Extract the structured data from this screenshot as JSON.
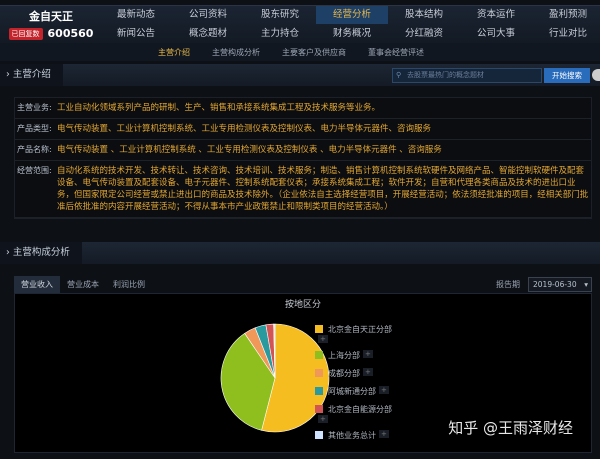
{
  "header": {
    "stock_name": "金自天正",
    "badge": "已回复数",
    "stock_code": "600560",
    "nav": [
      "最新动态",
      "公司资料",
      "股东研究",
      "经营分析",
      "股本结构",
      "资本运作",
      "盈利预测",
      "新闻公告",
      "概念题材",
      "主力持仓",
      "财务概况",
      "分红融资",
      "公司大事",
      "行业对比"
    ],
    "active_nav": "经营分析"
  },
  "subnav": {
    "items": [
      "主营介绍",
      "主营构成分析",
      "主要客户及供应商",
      "董事会经营评述"
    ],
    "active": "主营介绍"
  },
  "section1": {
    "title": "主营介绍",
    "search_placeholder": "去股票最热门的概念题材",
    "search_button": "开始搜索"
  },
  "info": [
    {
      "label": "主营业务:",
      "value": "工业自动化领域系列产品的研制、生产、销售和承接系统集成工程及技术服务等业务。"
    },
    {
      "label": "产品类型:",
      "value": "电气传动装置、工业计算机控制系统、工业专用检测仪表及控制仪表、电力半导体元器件、咨询服务"
    },
    {
      "label": "产品名称:",
      "value": "电气传动装置 、工业计算机控制系统 、工业专用检测仪表及控制仪表 、电力半导体元器件 、咨询服务"
    },
    {
      "label": "经营范围:",
      "value": "自动化系统的技术开发、技术转让、技术咨询、技术培训、技术服务；制造、销售计算机控制系统软硬件及网络产品、智能控制软硬件及配套设备、电气传动装置及配套设备、电子元器件、控制系统配套仪表；承接系统集成工程；软件开发；自营和代理各类商品及技术的进出口业务，但国家限定公司经营或禁止进出口的商品及技术除外。（企业依法自主选择经营项目，开展经营活动；依法须经批准的项目，经相关部门批准后依批准的内容开展经营活动；不得从事本市产业政策禁止和限制类项目的经营活动。）"
    }
  ],
  "section2": {
    "title": "主营构成分析",
    "tabs": [
      "营业收入",
      "营业成本",
      "利润比例"
    ],
    "active_tab": "营业收入",
    "period_label": "报告期",
    "period_value": "2019-06-30"
  },
  "chart_data": {
    "type": "pie",
    "title": "按地区分",
    "slices": [
      {
        "name": "北京金自天正分部",
        "value": 54,
        "color": "#f5bd1f"
      },
      {
        "name": "上海分部",
        "value": 36.5,
        "color": "#8fbf1e"
      },
      {
        "name": "成都分部",
        "value": 3.5,
        "color": "#f0975a"
      },
      {
        "name": "阿城新通分部",
        "value": 3.3,
        "color": "#2a9a9f"
      },
      {
        "name": "北京金自能源分部",
        "value": 2.3,
        "color": "#d35454"
      },
      {
        "name": "其他业务总计",
        "value": 0.4,
        "color": "#cfe3ff"
      }
    ],
    "legend": "right"
  },
  "watermark": "知乎 @王雨泽财经"
}
